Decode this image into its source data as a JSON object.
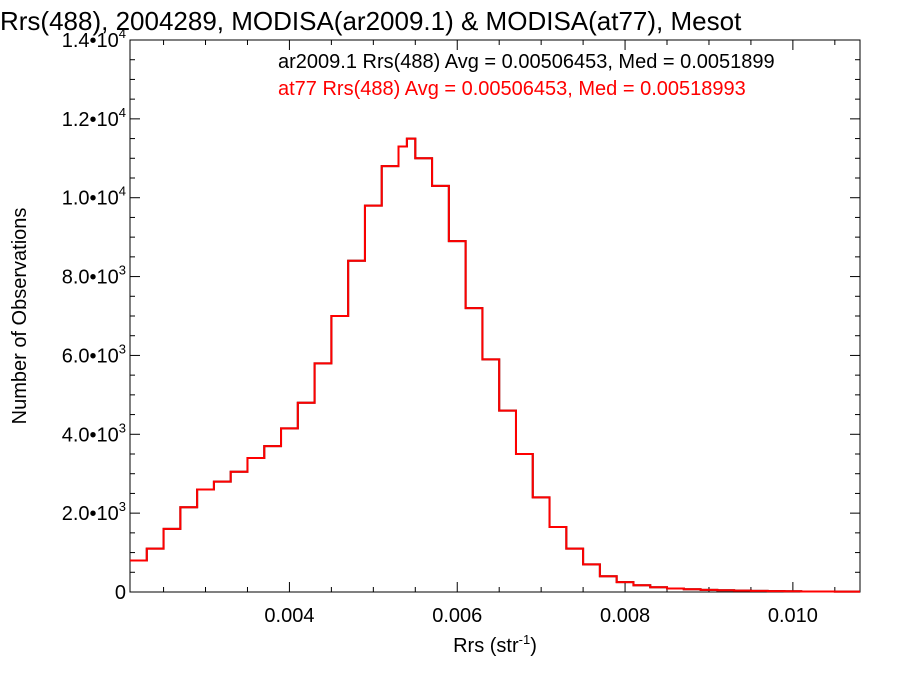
{
  "chart_data": {
    "type": "line",
    "title": "Rrs(488), 2004289, MODISA(ar2009.1) & MODISA(at77), Mesot",
    "xlabel": "Rrs (str",
    "xlabel_sup": "-1",
    "xlabel_close": ")",
    "ylabel": "Number of Observations",
    "xlim": [
      0.0021,
      0.0108
    ],
    "ylim": [
      0,
      14000
    ],
    "x_ticks": [
      {
        "value": 0.004,
        "label": "0.004"
      },
      {
        "value": 0.006,
        "label": "0.006"
      },
      {
        "value": 0.008,
        "label": "0.008"
      },
      {
        "value": 0.01,
        "label": "0.010"
      }
    ],
    "y_ticks": [
      {
        "value": 0,
        "mant": "0",
        "exp": ""
      },
      {
        "value": 2000,
        "mant": "2.0•10",
        "exp": "3"
      },
      {
        "value": 4000,
        "mant": "4.0•10",
        "exp": "3"
      },
      {
        "value": 6000,
        "mant": "6.0•10",
        "exp": "3"
      },
      {
        "value": 8000,
        "mant": "8.0•10",
        "exp": "3"
      },
      {
        "value": 10000,
        "mant": "1.0•10",
        "exp": "4"
      },
      {
        "value": 12000,
        "mant": "1.2•10",
        "exp": "4"
      },
      {
        "value": 14000,
        "mant": "1.4•10",
        "exp": "4"
      }
    ],
    "grid": false,
    "legend": [
      {
        "text": "ar2009.1 Rrs(488) Avg = 0.00506453, Med = 0.0051899",
        "color": "#000000"
      },
      {
        "text": "at77 Rrs(488) Avg = 0.00506453, Med = 0.00518993",
        "color": "#ff0000"
      }
    ],
    "series": [
      {
        "name": "ar2009.1",
        "color": "#000000",
        "x": [
          0.0021,
          0.0023,
          0.0025,
          0.0027,
          0.0029,
          0.0031,
          0.0033,
          0.0035,
          0.0037,
          0.0039,
          0.0041,
          0.0043,
          0.0045,
          0.0047,
          0.0049,
          0.0051,
          0.0053,
          0.0054,
          0.0055,
          0.0057,
          0.0059,
          0.0061,
          0.0063,
          0.0065,
          0.0067,
          0.0069,
          0.0071,
          0.0073,
          0.0075,
          0.0077,
          0.0079,
          0.0081,
          0.0083,
          0.0085,
          0.0087,
          0.0089,
          0.0091,
          0.0093,
          0.0095,
          0.0097,
          0.0099,
          0.0101,
          0.0103,
          0.0105,
          0.0107
        ],
        "y": [
          800,
          1100,
          1600,
          2150,
          2600,
          2800,
          3050,
          3400,
          3700,
          4150,
          4800,
          5800,
          7000,
          8400,
          9800,
          10800,
          11300,
          11500,
          11000,
          10300,
          8900,
          7200,
          5900,
          4600,
          3500,
          2400,
          1650,
          1100,
          700,
          400,
          250,
          170,
          120,
          90,
          70,
          55,
          45,
          35,
          28,
          22,
          18,
          14,
          12,
          10,
          8
        ]
      },
      {
        "name": "at77",
        "color": "#ff0000",
        "x": [
          0.0021,
          0.0023,
          0.0025,
          0.0027,
          0.0029,
          0.0031,
          0.0033,
          0.0035,
          0.0037,
          0.0039,
          0.0041,
          0.0043,
          0.0045,
          0.0047,
          0.0049,
          0.0051,
          0.0053,
          0.0054,
          0.0055,
          0.0057,
          0.0059,
          0.0061,
          0.0063,
          0.0065,
          0.0067,
          0.0069,
          0.0071,
          0.0073,
          0.0075,
          0.0077,
          0.0079,
          0.0081,
          0.0083,
          0.0085,
          0.0087,
          0.0089,
          0.0091,
          0.0093,
          0.0095,
          0.0097,
          0.0099,
          0.0101,
          0.0103,
          0.0105,
          0.0107
        ],
        "y": [
          800,
          1100,
          1600,
          2150,
          2600,
          2800,
          3050,
          3400,
          3700,
          4150,
          4800,
          5800,
          7000,
          8400,
          9800,
          10800,
          11300,
          11500,
          11000,
          10300,
          8900,
          7200,
          5900,
          4600,
          3500,
          2400,
          1650,
          1100,
          700,
          400,
          250,
          170,
          120,
          90,
          70,
          55,
          45,
          35,
          28,
          22,
          18,
          14,
          12,
          10,
          8
        ]
      }
    ]
  }
}
